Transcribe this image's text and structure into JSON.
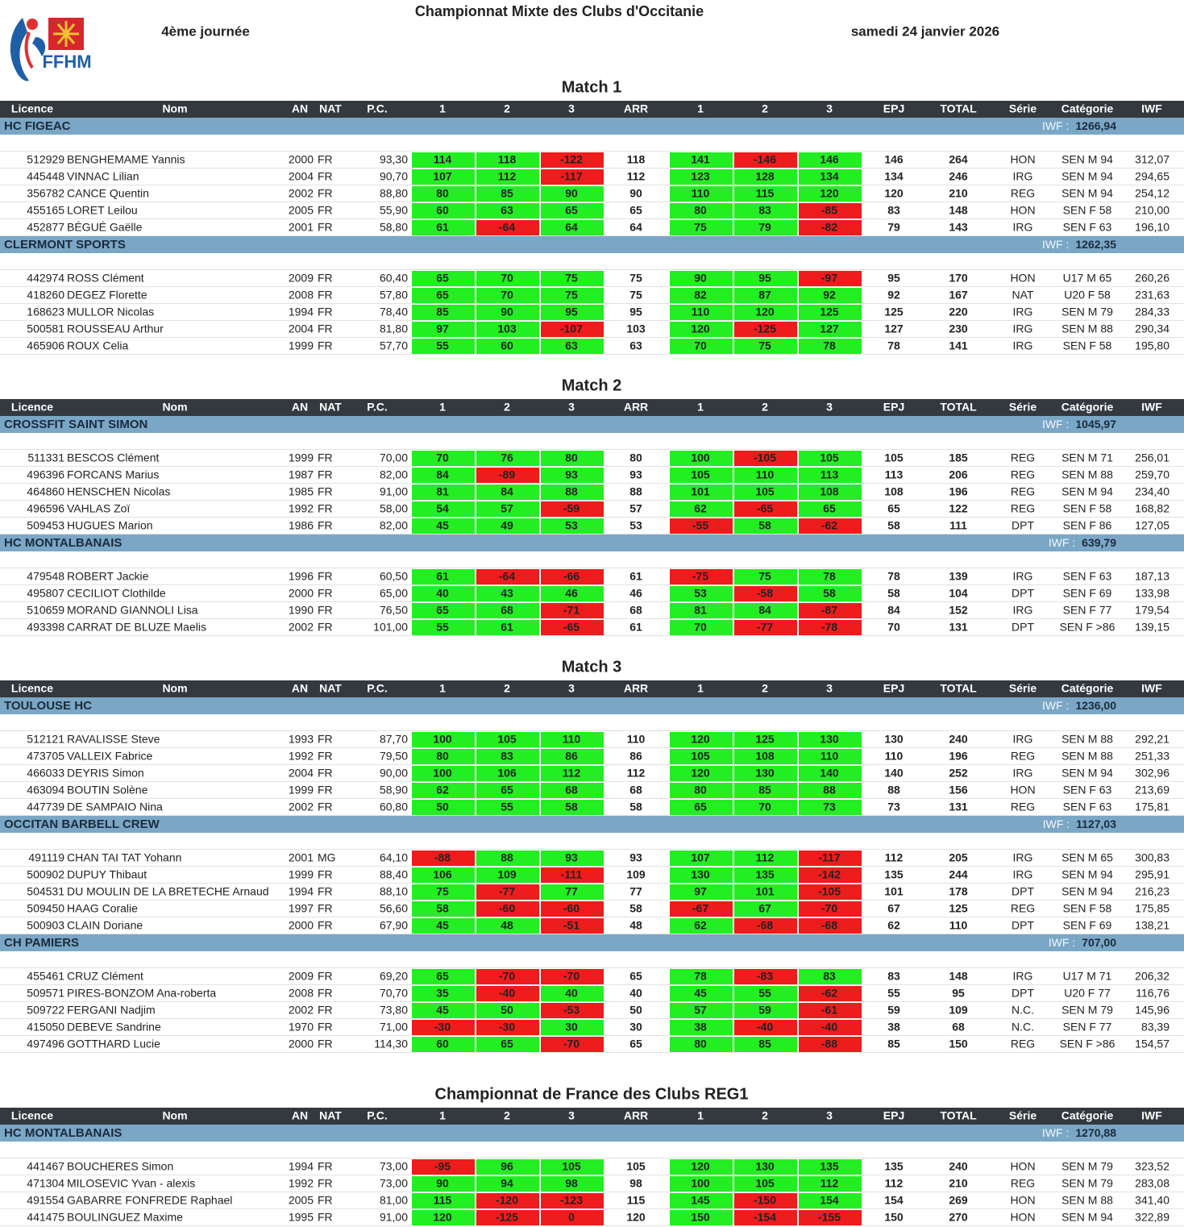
{
  "header": {
    "title": "Championnat Mixte des Clubs d'Occitanie",
    "round": "4ème journée",
    "date": "samedi 24 janvier 2026",
    "logo_text": "FFHM"
  },
  "columns": [
    "Licence",
    "Nom",
    "AN",
    "NAT",
    "P.C.",
    "1",
    "2",
    "3",
    "ARR",
    "1",
    "2",
    "3",
    "EPJ",
    "TOTAL",
    "Série",
    "Catégorie",
    "IWF"
  ],
  "iwf_label": "IWF :",
  "sections": [
    {
      "title": "Match 1",
      "teams": [
        {
          "name": "HC FIGEAC",
          "iwf": "1266,94",
          "rows": [
            [
              "512929",
              "BENGHEMAME Yannis",
              "2000",
              "FR",
              "93,30",
              "114",
              "118",
              "-122",
              "118",
              "141",
              "-146",
              "146",
              "146",
              "264",
              "HON",
              "SEN M 94",
              "312,07"
            ],
            [
              "445448",
              "VINNAC Lilian",
              "2004",
              "FR",
              "90,70",
              "107",
              "112",
              "-117",
              "112",
              "123",
              "128",
              "134",
              "134",
              "246",
              "IRG",
              "SEN M 94",
              "294,65"
            ],
            [
              "356782",
              "CANCE Quentin",
              "2002",
              "FR",
              "88,80",
              "80",
              "85",
              "90",
              "90",
              "110",
              "115",
              "120",
              "120",
              "210",
              "REG",
              "SEN M 94",
              "254,12"
            ],
            [
              "455165",
              "LORET Leilou",
              "2005",
              "FR",
              "55,90",
              "60",
              "63",
              "65",
              "65",
              "80",
              "83",
              "-85",
              "83",
              "148",
              "HON",
              "SEN F 58",
              "210,00"
            ],
            [
              "452877",
              "BÉGUÉ Gaëlle",
              "2001",
              "FR",
              "58,80",
              "61",
              "-64",
              "64",
              "64",
              "75",
              "79",
              "-82",
              "79",
              "143",
              "IRG",
              "SEN F 63",
              "196,10"
            ]
          ]
        },
        {
          "name": "CLERMONT SPORTS",
          "iwf": "1262,35",
          "rows": [
            [
              "442974",
              "ROSS Clément",
              "2009",
              "FR",
              "60,40",
              "65",
              "70",
              "75",
              "75",
              "90",
              "95",
              "-97",
              "95",
              "170",
              "HON",
              "U17 M 65",
              "260,26"
            ],
            [
              "418260",
              "DEGEZ Florette",
              "2008",
              "FR",
              "57,80",
              "65",
              "70",
              "75",
              "75",
              "82",
              "87",
              "92",
              "92",
              "167",
              "NAT",
              "U20 F 58",
              "231,63"
            ],
            [
              "168623",
              "MULLOR Nicolas",
              "1994",
              "FR",
              "78,40",
              "85",
              "90",
              "95",
              "95",
              "110",
              "120",
              "125",
              "125",
              "220",
              "IRG",
              "SEN M 79",
              "284,33"
            ],
            [
              "500581",
              "ROUSSEAU Arthur",
              "2004",
              "FR",
              "81,80",
              "97",
              "103",
              "-107",
              "103",
              "120",
              "-125",
              "127",
              "127",
              "230",
              "IRG",
              "SEN M 88",
              "290,34"
            ],
            [
              "465906",
              "ROUX Celia",
              "1999",
              "FR",
              "57,70",
              "55",
              "60",
              "63",
              "63",
              "70",
              "75",
              "78",
              "78",
              "141",
              "IRG",
              "SEN F 58",
              "195,80"
            ]
          ]
        }
      ]
    },
    {
      "title": "Match 2",
      "teams": [
        {
          "name": "CROSSFIT SAINT SIMON",
          "iwf": "1045,97",
          "rows": [
            [
              "511331",
              "BESCOS Clément",
              "1999",
              "FR",
              "70,00",
              "70",
              "76",
              "80",
              "80",
              "100",
              "-105",
              "105",
              "105",
              "185",
              "REG",
              "SEN M 71",
              "256,01"
            ],
            [
              "496396",
              "FORCANS Marius",
              "1987",
              "FR",
              "82,00",
              "84",
              "-89",
              "93",
              "93",
              "105",
              "110",
              "113",
              "113",
              "206",
              "REG",
              "SEN M 88",
              "259,70"
            ],
            [
              "464860",
              "HENSCHEN Nicolas",
              "1985",
              "FR",
              "91,00",
              "81",
              "84",
              "88",
              "88",
              "101",
              "105",
              "108",
              "108",
              "196",
              "REG",
              "SEN M 94",
              "234,40"
            ],
            [
              "496596",
              "VAHLAS Zoï",
              "1992",
              "FR",
              "58,00",
              "54",
              "57",
              "-59",
              "57",
              "62",
              "-65",
              "65",
              "65",
              "122",
              "REG",
              "SEN F 58",
              "168,82"
            ],
            [
              "509453",
              "HUGUES Marion",
              "1986",
              "FR",
              "82,00",
              "45",
              "49",
              "53",
              "53",
              "-55",
              "58",
              "-62",
              "58",
              "111",
              "DPT",
              "SEN F 86",
              "127,05"
            ]
          ]
        },
        {
          "name": "HC MONTALBANAIS",
          "iwf": "639,79",
          "rows": [
            [
              "479548",
              "ROBERT Jackie",
              "1996",
              "FR",
              "60,50",
              "61",
              "-64",
              "-66",
              "61",
              "-75",
              "75",
              "78",
              "78",
              "139",
              "IRG",
              "SEN F 63",
              "187,13"
            ],
            [
              "495807",
              "CECILIOT Clothilde",
              "2000",
              "FR",
              "65,00",
              "40",
              "43",
              "46",
              "46",
              "53",
              "-58",
              "58",
              "58",
              "104",
              "DPT",
              "SEN F 69",
              "133,98"
            ],
            [
              "510659",
              "MORAND GIANNOLI Lisa",
              "1990",
              "FR",
              "76,50",
              "65",
              "68",
              "-71",
              "68",
              "81",
              "84",
              "-87",
              "84",
              "152",
              "IRG",
              "SEN F 77",
              "179,54"
            ],
            [
              "493398",
              "CARRAT DE BLUZE Maelis",
              "2002",
              "FR",
              "101,00",
              "55",
              "61",
              "-65",
              "61",
              "70",
              "-77",
              "-78",
              "70",
              "131",
              "DPT",
              "SEN F >86",
              "139,15"
            ]
          ]
        }
      ]
    },
    {
      "title": "Match 3",
      "teams": [
        {
          "name": "TOULOUSE HC",
          "iwf": "1236,00",
          "rows": [
            [
              "512121",
              "RAVALISSE Steve",
              "1993",
              "FR",
              "87,70",
              "100",
              "105",
              "110",
              "110",
              "120",
              "125",
              "130",
              "130",
              "240",
              "IRG",
              "SEN M 88",
              "292,21"
            ],
            [
              "473705",
              "VALLEIX Fabrice",
              "1992",
              "FR",
              "79,50",
              "80",
              "83",
              "86",
              "86",
              "105",
              "108",
              "110",
              "110",
              "196",
              "REG",
              "SEN M 88",
              "251,33"
            ],
            [
              "466033",
              "DEYRIS Simon",
              "2004",
              "FR",
              "90,00",
              "100",
              "106",
              "112",
              "112",
              "120",
              "130",
              "140",
              "140",
              "252",
              "IRG",
              "SEN M 94",
              "302,96"
            ],
            [
              "463094",
              "BOUTIN Solène",
              "1999",
              "FR",
              "58,90",
              "62",
              "65",
              "68",
              "68",
              "80",
              "85",
              "88",
              "88",
              "156",
              "HON",
              "SEN F 63",
              "213,69"
            ],
            [
              "447739",
              "DE SAMPAIO Nina",
              "2002",
              "FR",
              "60,80",
              "50",
              "55",
              "58",
              "58",
              "65",
              "70",
              "73",
              "73",
              "131",
              "REG",
              "SEN F 63",
              "175,81"
            ]
          ]
        },
        {
          "name": "OCCITAN BARBELL CREW",
          "iwf": "1127,03",
          "rows": [
            [
              "491119",
              "CHAN TAI TAT Yohann",
              "2001",
              "MG",
              "64,10",
              "-88",
              "88",
              "93",
              "93",
              "107",
              "112",
              "-117",
              "112",
              "205",
              "IRG",
              "SEN M 65",
              "300,83"
            ],
            [
              "500902",
              "DUPUY Thibaut",
              "1999",
              "FR",
              "88,40",
              "106",
              "109",
              "-111",
              "109",
              "130",
              "135",
              "-142",
              "135",
              "244",
              "IRG",
              "SEN M 94",
              "295,91"
            ],
            [
              "504531",
              "DU MOULIN DE LA BRETECHE Arnaud",
              "1994",
              "FR",
              "88,10",
              "75",
              "-77",
              "77",
              "77",
              "97",
              "101",
              "-105",
              "101",
              "178",
              "DPT",
              "SEN M 94",
              "216,23"
            ],
            [
              "509450",
              "HAAG Coralie",
              "1997",
              "FR",
              "56,60",
              "58",
              "-60",
              "-60",
              "58",
              "-67",
              "67",
              "-70",
              "67",
              "125",
              "REG",
              "SEN F 58",
              "175,85"
            ],
            [
              "500903",
              "CLAIN Doriane",
              "2000",
              "FR",
              "67,90",
              "45",
              "48",
              "-51",
              "48",
              "62",
              "-68",
              "-68",
              "62",
              "110",
              "DPT",
              "SEN F 69",
              "138,21"
            ]
          ]
        },
        {
          "name": "CH PAMIERS",
          "iwf": "707,00",
          "rows": [
            [
              "455461",
              "CRUZ Clément",
              "2009",
              "FR",
              "69,20",
              "65",
              "-70",
              "-70",
              "65",
              "78",
              "-83",
              "83",
              "83",
              "148",
              "IRG",
              "U17 M 71",
              "206,32"
            ],
            [
              "509571",
              "PIRES-BONZOM Ana-roberta",
              "2008",
              "FR",
              "70,70",
              "35",
              "-40",
              "40",
              "40",
              "45",
              "55",
              "-62",
              "55",
              "95",
              "DPT",
              "U20 F 77",
              "116,76"
            ],
            [
              "509722",
              "FERGANI Nadjim",
              "2002",
              "FR",
              "73,80",
              "45",
              "50",
              "-53",
              "50",
              "57",
              "59",
              "-61",
              "59",
              "109",
              "N.C.",
              "SEN M 79",
              "145,96"
            ],
            [
              "415050",
              "DEBEVE Sandrine",
              "1970",
              "FR",
              "71,00",
              "-30",
              "-30",
              "30",
              "30",
              "38",
              "-40",
              "-40",
              "38",
              "68",
              "N.C.",
              "SEN F 77",
              "83,39"
            ],
            [
              "497496",
              "GOTTHARD Lucie",
              "2000",
              "FR",
              "114,30",
              "60",
              "65",
              "-70",
              "65",
              "80",
              "85",
              "-88",
              "85",
              "150",
              "REG",
              "SEN F >86",
              "154,57"
            ]
          ]
        }
      ]
    },
    {
      "title": "Championnat de France des Clubs REG1",
      "teams": [
        {
          "name": "HC MONTALBANAIS",
          "iwf": "1270,88",
          "rows": [
            [
              "441467",
              "BOUCHERES Simon",
              "1994",
              "FR",
              "73,00",
              "-95",
              "96",
              "105",
              "105",
              "120",
              "130",
              "135",
              "135",
              "240",
              "HON",
              "SEN M 79",
              "323,52"
            ],
            [
              "471304",
              "MILOSEVIC Yvan - alexis",
              "1992",
              "FR",
              "73,00",
              "90",
              "94",
              "98",
              "98",
              "100",
              "105",
              "112",
              "112",
              "210",
              "REG",
              "SEN M 79",
              "283,08"
            ],
            [
              "491554",
              "GABARRE FONFREDE Raphael",
              "2005",
              "FR",
              "81,00",
              "115",
              "-120",
              "-123",
              "115",
              "145",
              "-150",
              "154",
              "154",
              "269",
              "HON",
              "SEN M 88",
              "341,40"
            ],
            [
              "441475",
              "BOULINGUEZ Maxime",
              "1995",
              "FR",
              "91,00",
              "120",
              "-125",
              "0",
              "120",
              "150",
              "-154",
              "-155",
              "150",
              "270",
              "HON",
              "SEN M 94",
              "322,89"
            ]
          ]
        }
      ]
    }
  ]
}
